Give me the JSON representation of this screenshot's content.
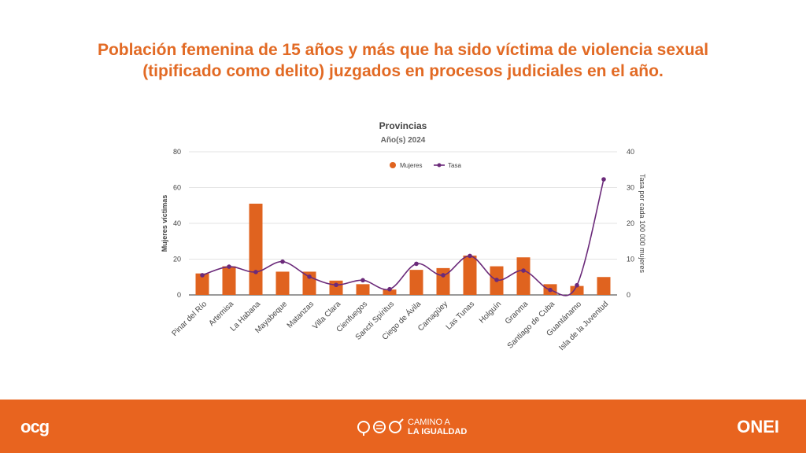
{
  "headline": {
    "line1": "Población femenina de 15 años y más que ha sido víctima de violencia sexual",
    "line2": "(tipificado como delito) juzgados en procesos judiciales en el año."
  },
  "chart_data": {
    "type": "bar+line",
    "title": "Provincias",
    "subtitle": "Año(s) 2024",
    "ylabel_left": "Mujeres víctimas",
    "ylabel_right": "Tasa por cada 100 000 mujeres",
    "ylim_left": [
      0,
      80
    ],
    "ylim_right": [
      0,
      40
    ],
    "yticks_left": [
      0,
      20,
      40,
      60,
      80
    ],
    "yticks_right": [
      0,
      10,
      20,
      30,
      40
    ],
    "legend_position": "top-center",
    "categories": [
      "Pinar del Río",
      "Artemisa",
      "La Habana",
      "Mayabeque",
      "Matanzas",
      "Villa Clara",
      "Cienfuegos",
      "Sancti Spíritus",
      "Ciego de Ávila",
      "Camagüey",
      "Las Tunas",
      "Holguín",
      "Granma",
      "Santiago de Cuba",
      "Guantánamo",
      "Isla de la Juventud"
    ],
    "series": [
      {
        "name": "Mujeres",
        "type": "bar",
        "axis": "left",
        "color": "#e0631f",
        "values": [
          12,
          16,
          51,
          13,
          13,
          8,
          6,
          3,
          14,
          15,
          22,
          16,
          21,
          6,
          5,
          10
        ]
      },
      {
        "name": "Tasa",
        "type": "line",
        "axis": "right",
        "color": "#6b2a7a",
        "values": [
          5.5,
          7.9,
          6.4,
          9.3,
          5.1,
          2.8,
          4.1,
          1.6,
          8.7,
          5.5,
          10.9,
          4.2,
          6.8,
          1.4,
          2.7,
          32.3
        ]
      }
    ]
  },
  "footer": {
    "logo_left": "ocg",
    "logo_center_line1": "CAMINO A",
    "logo_center_line2": "LA IGUALDAD",
    "logo_right": "ONEI"
  }
}
